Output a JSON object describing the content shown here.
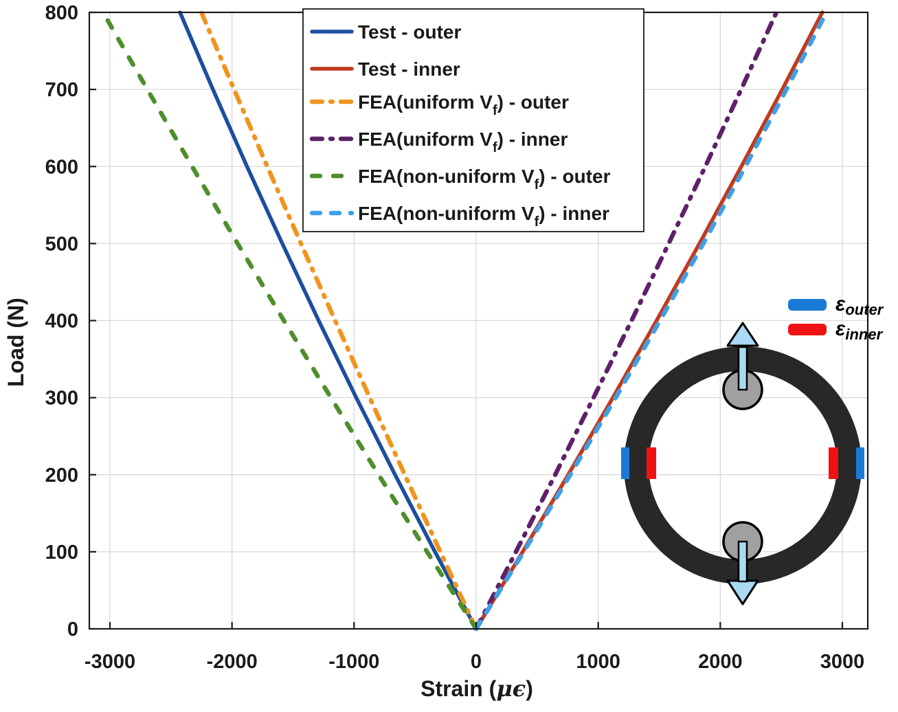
{
  "figure_title": "",
  "chart_data": {
    "type": "line",
    "title": "",
    "xlabel": "Strain (με)",
    "xlabel_parts": {
      "pre": "Strain (",
      "italic": "μϵ",
      "post": ")"
    },
    "ylabel": "Load (N)",
    "xlim": [
      -3170,
      3210
    ],
    "ylim": [
      0,
      800
    ],
    "grid": true,
    "legend_position": "top-center",
    "x_ticks": [
      -3000,
      -2000,
      -1000,
      0,
      1000,
      2000,
      3000
    ],
    "y_ticks": [
      0,
      100,
      200,
      300,
      400,
      500,
      600,
      700,
      800
    ],
    "axis_color": "#1a1a1a",
    "grid_color": "#d8d8d8",
    "series": [
      {
        "name": "Test - outer",
        "label": {
          "pre": "Test - outer",
          "sub": "",
          "post": ""
        },
        "color": "#1b4f9e",
        "style": "solid",
        "loads": [
          0,
          100,
          200,
          300,
          400,
          500,
          600,
          700,
          800
        ],
        "strains": [
          0,
          -337,
          -664,
          -982,
          -1290,
          -1588,
          -1877,
          -2156,
          -2426
        ]
      },
      {
        "name": "Test - inner",
        "label": {
          "pre": "Test - inner",
          "sub": "",
          "post": ""
        },
        "color": "#c03a20",
        "style": "solid",
        "loads": [
          0,
          100,
          200,
          300,
          400,
          500,
          600,
          700,
          800
        ],
        "strains": [
          0,
          381,
          754,
          1120,
          1478,
          1829,
          2172,
          2508,
          2836
        ]
      },
      {
        "name": "FEA(uniform Vf) - outer",
        "label": {
          "pre": "FEA(uniform V",
          "sub": "f",
          "post": ") - outer"
        },
        "color": "#f0941f",
        "style": "dashdot",
        "loads": [
          0,
          100,
          200,
          300,
          400,
          500,
          600,
          700,
          800
        ],
        "strains": [
          0,
          -294,
          -585,
          -872,
          -1155,
          -1435,
          -1711,
          -1983,
          -2251
        ]
      },
      {
        "name": "FEA(uniform Vf) - inner",
        "label": {
          "pre": "FEA(uniform V",
          "sub": "f",
          "post": ") - inner"
        },
        "color": "#5e2169",
        "style": "dashdot",
        "loads": [
          0,
          100,
          200,
          300,
          400,
          500,
          600,
          700,
          800
        ],
        "strains": [
          0,
          326,
          647,
          962,
          1273,
          1577,
          1877,
          2171,
          2460
        ]
      },
      {
        "name": "FEA(non-uniform Vf) - outer",
        "label": {
          "pre": "FEA(non-uniform V",
          "sub": "f",
          "post": ") - outer"
        },
        "color": "#4e8f2c",
        "style": "dashed",
        "loads": [
          0,
          100,
          200,
          300,
          400,
          500,
          600,
          700,
          800
        ],
        "strains": [
          0,
          -402,
          -799,
          -1190,
          -1575,
          -1954,
          -2327,
          -2694,
          -3056
        ]
      },
      {
        "name": "FEA(non-uniform Vf) - inner",
        "label": {
          "pre": "FEA(non-uniform V",
          "sub": "f",
          "post": ") - inner"
        },
        "color": "#3fa0e6",
        "style": "dashed2",
        "loads": [
          0,
          100,
          200,
          300,
          400,
          500,
          600,
          700,
          800
        ],
        "strains": [
          0,
          390,
          771,
          1143,
          1506,
          1861,
          2206,
          2542,
          2870
        ]
      }
    ]
  },
  "inset": {
    "legend": [
      {
        "base": "ε",
        "sub": "outer",
        "color": "#1a7ad8"
      },
      {
        "base": "ε",
        "sub": "inner",
        "color": "#f01212"
      }
    ],
    "ring_color": "#282828",
    "pin_color": "#a0a0a0",
    "arrow_color": "#a9d9f5",
    "gauge_outer_color": "#1a7ad8",
    "gauge_inner_color": "#f01212"
  }
}
